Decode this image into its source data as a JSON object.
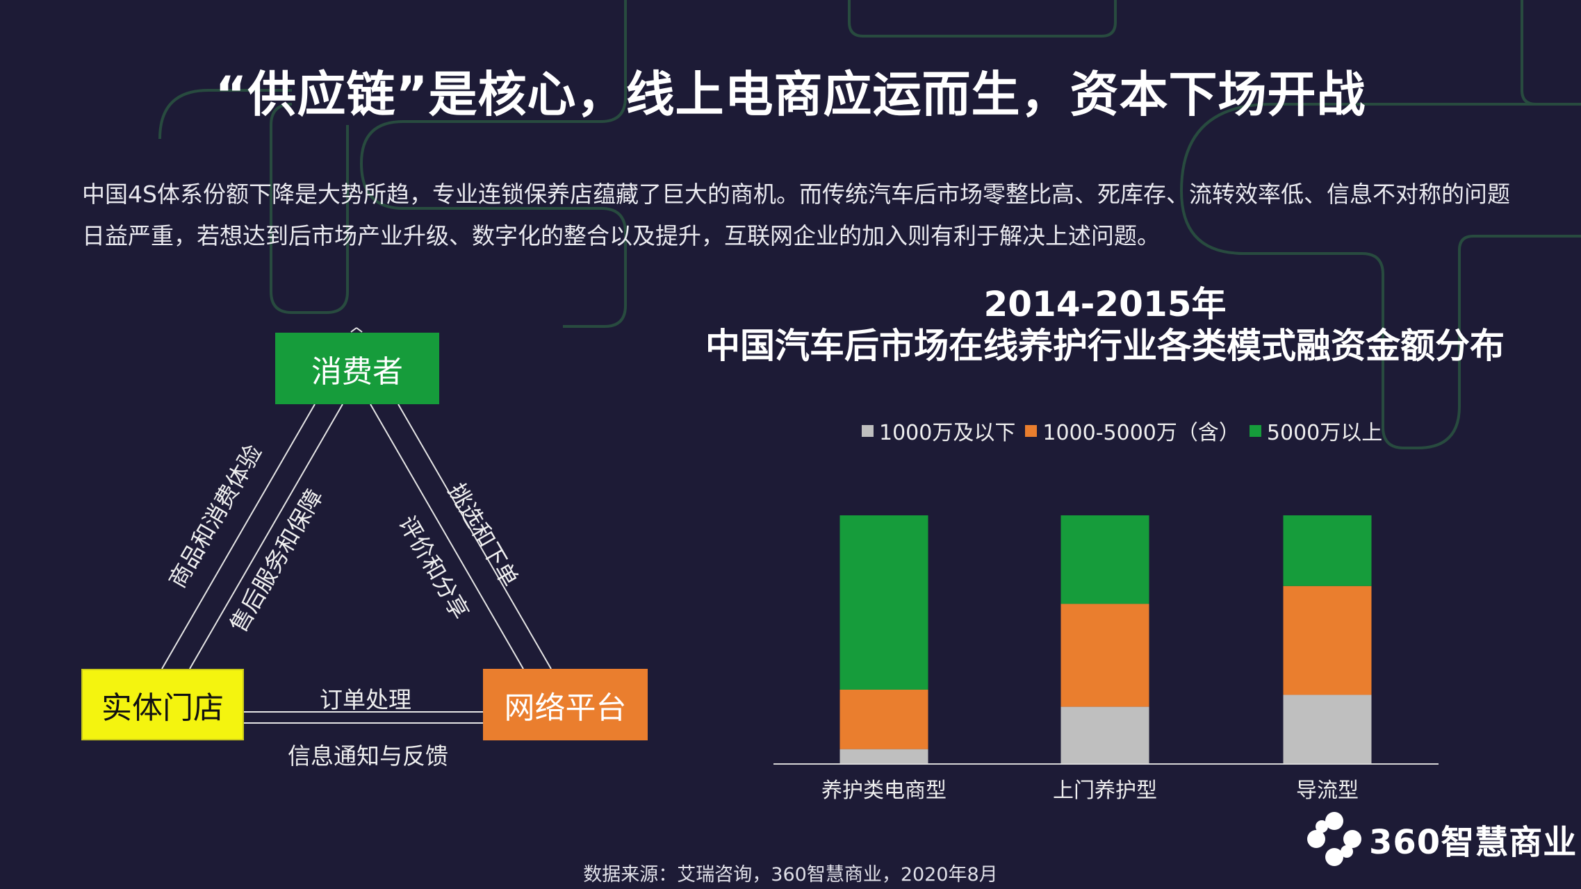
{
  "title": "“供应链”是核心，线上电商应运而生，资本下场开战",
  "intro": "中国4S体系份额下降是大势所趋，专业连锁保养店蕴藏了巨大的商机。而传统汽车后市场零整比高、死库存、流转效率低、信息不对称的问题日益严重，若想达到后市场产业升级、数字化的整合以及提升，互联网企业的加入则有利于解决上述问题。",
  "diagram": {
    "nodes": {
      "consumer": "消费者",
      "store": "实体门店",
      "platform": "网络平台"
    },
    "edges": {
      "store_to_consumer": "商品和消费体验",
      "after_sales": "售后服务和保障",
      "review": "评价和分享",
      "select_order": "挑选和下单",
      "order_processing": "订单处理",
      "info_feedback": "信息通知与反馈"
    },
    "colors": {
      "consumer": "#169c3b",
      "store": "#f4f40f",
      "platform": "#ea7e2e"
    }
  },
  "chart_data": {
    "type": "bar",
    "stacked": true,
    "title_line1": "2014-2015年",
    "title_line2": "中国汽车后市场在线养护行业各类模式融资金额分布",
    "categories": [
      "养护类电商型",
      "上门养护型",
      "导流型"
    ],
    "series": [
      {
        "name": "1000万及以下",
        "color": "#bfbfbf",
        "values": [
          5.7,
          22.8,
          27.6
        ]
      },
      {
        "name": "1000-5000万（含）",
        "color": "#ea7e2e",
        "values": [
          24.0,
          41.5,
          43.9
        ]
      },
      {
        "name": "5000万以上",
        "color": "#169c3b",
        "values": [
          70.3,
          35.7,
          28.5
        ]
      }
    ],
    "ylim": [
      0,
      100
    ],
    "legend_position": "top",
    "grid": false
  },
  "source": "数据来源：艾瑞咨询，360智慧商业，2020年8月",
  "logo": {
    "text": "360智慧商业",
    "icon": "360-flower-icon"
  }
}
